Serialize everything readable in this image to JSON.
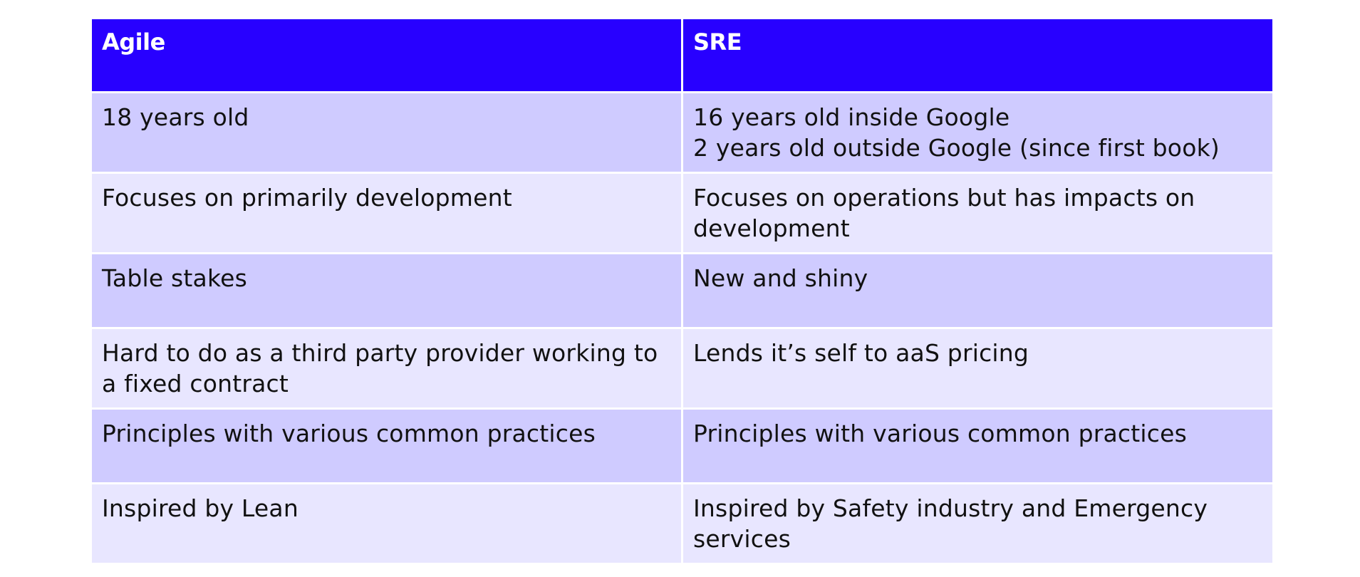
{
  "table": {
    "headers": {
      "left": "Agile",
      "right": "SRE"
    },
    "rows": [
      {
        "left": [
          "18 years old"
        ],
        "right": [
          "16 years old inside Google",
          "2 years old outside Google (since first book)"
        ]
      },
      {
        "left": [
          "Focuses on primarily development"
        ],
        "right": [
          "Focuses on operations but has impacts on",
          "development"
        ]
      },
      {
        "left": [
          "Table stakes"
        ],
        "right": [
          "New and shiny"
        ]
      },
      {
        "left": [
          "Hard to do as a third party provider working to",
          "a fixed contract"
        ],
        "right": [
          "Lends it’s self to aaS pricing"
        ]
      },
      {
        "left": [
          "Principles with various common practices"
        ],
        "right": [
          "Principles with various common practices"
        ]
      },
      {
        "left": [
          "Inspired by Lean"
        ],
        "right": [
          "Inspired by Safety industry and Emergency",
          "services"
        ]
      }
    ],
    "colors": {
      "header_bg": "#2800ff",
      "row_dark_bg": "#cfcbff",
      "row_light_bg": "#e8e6ff",
      "border": "#ffffff"
    }
  }
}
